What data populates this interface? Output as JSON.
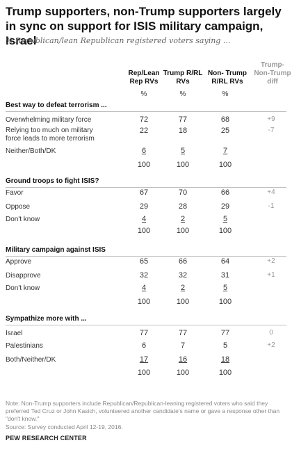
{
  "title": "Trump supporters, non-Trump supporters largely in sync on support for ISIS military campaign, Israel",
  "subtitle": "% Republican/lean Republican registered voters saying ...",
  "columns": [
    {
      "label": "Rep/Lean Rep RVs"
    },
    {
      "label": "Trump R/RL RVs"
    },
    {
      "label": "Non- Trump R/RL RVs"
    },
    {
      "label": "Trump-Non-Trump diff"
    }
  ],
  "pct_label": "%",
  "sections": [
    {
      "heading": "Best way to defeat terrorism ...",
      "rows": [
        {
          "label": "Overwhelming military force",
          "values": [
            "72",
            "77",
            "68"
          ],
          "diff": "+9"
        },
        {
          "label": "Relying too much on military force leads to more terrorism",
          "values": [
            "22",
            "18",
            "25"
          ],
          "diff": "-7"
        },
        {
          "label": "Neither/Both/DK",
          "values": [
            "6",
            "5",
            "7"
          ],
          "diff": ""
        }
      ],
      "totals": [
        "100",
        "100",
        "100"
      ]
    },
    {
      "heading": "Ground troops to fight ISIS?",
      "rows": [
        {
          "label": "Favor",
          "values": [
            "67",
            "70",
            "66"
          ],
          "diff": "+4"
        },
        {
          "label": "Oppose",
          "values": [
            "29",
            "28",
            "29"
          ],
          "diff": "-1"
        },
        {
          "label": "Don't know",
          "values": [
            "4",
            "2",
            "5"
          ],
          "diff": ""
        }
      ],
      "totals": [
        "100",
        "100",
        "100"
      ]
    },
    {
      "heading": "Military campaign against ISIS",
      "rows": [
        {
          "label": "Approve",
          "values": [
            "65",
            "66",
            "64"
          ],
          "diff": "+2"
        },
        {
          "label": "Disapprove",
          "values": [
            "32",
            "32",
            "31"
          ],
          "diff": "+1"
        },
        {
          "label": "Don't know",
          "values": [
            "4",
            "2",
            "5"
          ],
          "diff": ""
        }
      ],
      "totals": [
        "100",
        "100",
        "100"
      ]
    },
    {
      "heading": "Sympathize more with ...",
      "rows": [
        {
          "label": "Israel",
          "values": [
            "77",
            "77",
            "77"
          ],
          "diff": "0"
        },
        {
          "label": "Palestinians",
          "values": [
            "6",
            "7",
            "5"
          ],
          "diff": "+2"
        },
        {
          "label": "Both/Neither/DK",
          "values": [
            "17",
            "16",
            "18"
          ],
          "diff": ""
        }
      ],
      "totals": [
        "100",
        "100",
        "100"
      ]
    }
  ],
  "note": "Note: Non-Trump supporters include Republican/Republican-leaning registered voters who said they preferred Ted Cruz or John Kasich, volunteered another candidate's name or gave a response other than \"don't know.\"",
  "source": "Source: Survey conducted April 12-19, 2016.",
  "brand": "PEW RESEARCH CENTER"
}
